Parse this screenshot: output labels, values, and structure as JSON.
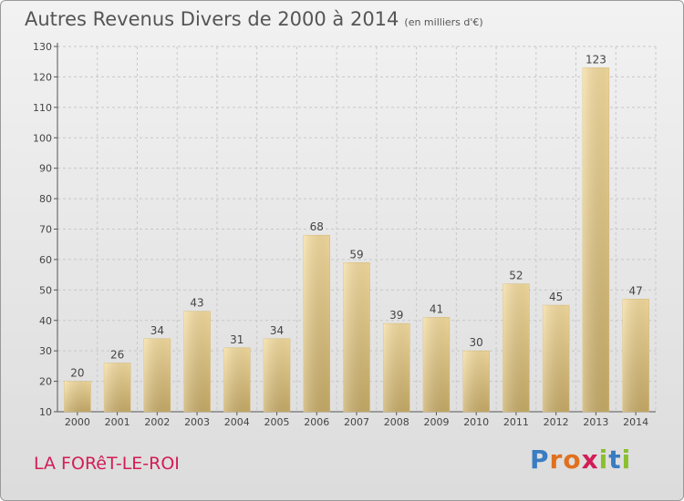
{
  "header": {
    "title": "Autres Revenus Divers de 2000 à 2014",
    "subtitle": "(en milliers d'€)"
  },
  "footer": {
    "location": "LA FORêT-LE-ROI",
    "logo_text": "Proxiti"
  },
  "chart_data": {
    "type": "bar",
    "title": "Autres Revenus Divers de 2000 à 2014",
    "subtitle": "(en milliers d'€)",
    "categories": [
      "2000",
      "2001",
      "2002",
      "2003",
      "2004",
      "2005",
      "2006",
      "2007",
      "2008",
      "2009",
      "2010",
      "2011",
      "2012",
      "2013",
      "2014"
    ],
    "values": [
      20,
      26,
      34,
      43,
      31,
      34,
      68,
      59,
      39,
      41,
      30,
      52,
      45,
      123,
      47
    ],
    "ylim": [
      10,
      130
    ],
    "yticks": [
      10,
      20,
      30,
      40,
      50,
      60,
      70,
      80,
      90,
      100,
      110,
      120,
      130
    ],
    "grid": true,
    "bar_color": "#e8cf8a"
  }
}
